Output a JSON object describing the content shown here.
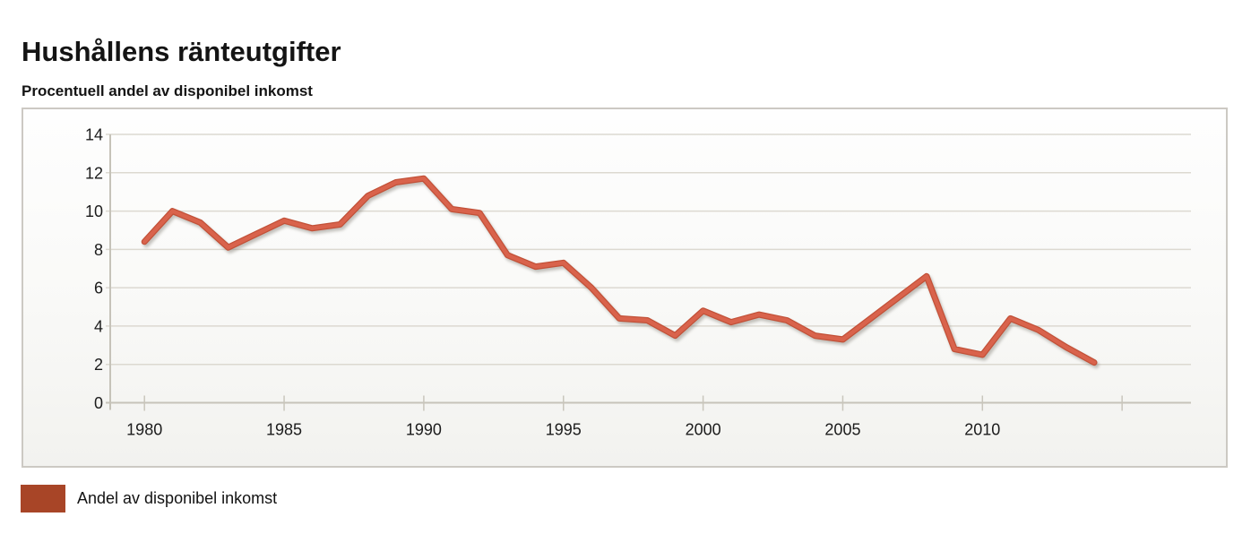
{
  "chart_data": {
    "type": "line",
    "title": "Hushållens ränteutgifter",
    "subtitle": "Procentuell andel av disponibel inkomst",
    "x": [
      1980,
      1981,
      1982,
      1983,
      1984,
      1985,
      1986,
      1987,
      1988,
      1989,
      1990,
      1991,
      1992,
      1993,
      1994,
      1995,
      1996,
      1997,
      1998,
      1999,
      2000,
      2001,
      2002,
      2003,
      2004,
      2005,
      2006,
      2007,
      2008,
      2009,
      2010,
      2011,
      2012,
      2013,
      2014
    ],
    "series": [
      {
        "name": "Andel av disponibel inkomst",
        "values": [
          8.4,
          10.0,
          9.4,
          8.1,
          8.8,
          9.5,
          9.1,
          9.3,
          10.8,
          11.5,
          11.7,
          10.1,
          9.9,
          7.7,
          7.1,
          7.3,
          6.0,
          4.4,
          4.3,
          3.5,
          4.8,
          4.2,
          4.6,
          4.3,
          3.5,
          3.3,
          4.4,
          5.5,
          6.6,
          2.8,
          2.5,
          4.4,
          3.8,
          2.9,
          2.1
        ],
        "line_color": "#d9634c",
        "line_edge_color": "#c25138",
        "legend_color": "#a84527"
      }
    ],
    "ylim": [
      0,
      14
    ],
    "yticks": [
      0,
      2,
      4,
      6,
      8,
      10,
      12,
      14
    ],
    "xticks": [
      {
        "year": 1980,
        "label": "1980"
      },
      {
        "year": 1985,
        "label": "1985"
      },
      {
        "year": 1990,
        "label": "1990"
      },
      {
        "year": 1995,
        "label": "1995"
      },
      {
        "year": 2000,
        "label": "2000"
      },
      {
        "year": 2005,
        "label": "2005"
      },
      {
        "year": 2010,
        "label": "2010"
      },
      {
        "year": 2015,
        "label": ""
      }
    ],
    "grid": true,
    "legend_position": "bottom-left",
    "colors": {
      "grid": "#dcd9d1",
      "axis": "#c6c3b9",
      "text": "#1c1c1c",
      "container_border": "#ccc9c3"
    }
  }
}
